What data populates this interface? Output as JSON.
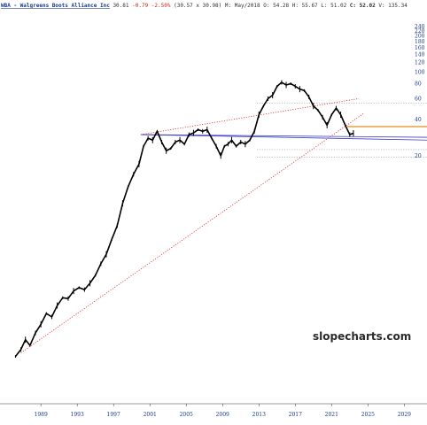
{
  "header": {
    "ticker": "WBA",
    "name": " - Walgreens Boots Alliance Inc",
    "last": " 30.81",
    "change": " -0.79 -2.50%",
    "range": " (30.57 x 30.98)",
    "period": " M: May/2018",
    "open": " O: 54.28",
    "high": " H: 55.67",
    "low": " L: 51.02",
    "close_label": " C: ",
    "close_value": "52.02",
    "volume": " V: 135.34"
  },
  "watermark": "slopecharts.com",
  "colors": {
    "price": "#000000",
    "trend_red": "#e03030",
    "trend_blue": "#3b3bc8",
    "support_orange": "#e8a040",
    "dotted_gray": "#9a9a9a",
    "axis_text": "#1a3a8c",
    "ticker_text": "#1a3a8c",
    "change_text": "#cc2222"
  },
  "chart_data": {
    "type": "line",
    "title": "WBA - Walgreens Boots Alliance Inc",
    "y_scale": "log",
    "y_ticks": [
      20,
      40,
      60,
      80,
      100,
      120,
      140,
      160,
      180,
      200,
      220,
      240
    ],
    "x_ticks": [
      "1989",
      "1993",
      "1997",
      "2001",
      "2005",
      "2009",
      "2013",
      "2017",
      "2021",
      "2025",
      "2029"
    ],
    "xlim": [
      1984.5,
      2031.5
    ],
    "ylim": [
      0.28,
      270
    ],
    "series": [
      {
        "x": [
          1986.2,
          1986.8,
          1987.3,
          1987.8,
          1988.4,
          1989.0,
          1989.6,
          1990.2,
          1990.8,
          1991.4,
          1992.0,
          1992.6,
          1993.2,
          1993.8,
          1994.4,
          1995.0,
          1995.6,
          1996.2,
          1996.8,
          1997.4,
          1998.0,
          1998.6,
          1999.2,
          1999.8,
          2000.3,
          2000.8,
          2001.3,
          2001.8,
          2002.3,
          2002.8,
          2003.3,
          2003.8,
          2004.3,
          2004.8,
          2005.3,
          2005.8,
          2006.3,
          2006.8,
          2007.3,
          2007.8,
          2008.3,
          2008.8,
          2009.2,
          2009.6,
          2010.0,
          2010.5,
          2011.0,
          2011.5,
          2012.0,
          2012.5,
          2013.0,
          2013.5,
          2014.0,
          2014.5,
          2015.0,
          2015.5,
          2016.0,
          2016.5,
          2017.0,
          2017.5,
          2018.0,
          2018.5,
          2019.0,
          2019.5,
          2020.0,
          2020.5,
          2021.0,
          2021.5,
          2022.0,
          2022.5,
          2023.0,
          2023.4
        ],
        "y": [
          0.42,
          0.48,
          0.58,
          0.52,
          0.66,
          0.78,
          0.96,
          0.9,
          1.12,
          1.3,
          1.28,
          1.48,
          1.58,
          1.52,
          1.72,
          2.0,
          2.5,
          3.0,
          4.0,
          5.2,
          8.0,
          11.0,
          14.0,
          17.0,
          24.0,
          28.0,
          27.0,
          32.0,
          26.0,
          22.0,
          23.0,
          26.0,
          27.0,
          25.0,
          30.0,
          31.0,
          33.0,
          32.0,
          33.0,
          28.0,
          24.0,
          20.0,
          24.0,
          25.0,
          27.0,
          24.0,
          26.0,
          25.0,
          27.0,
          32.0,
          44.0,
          52.0,
          60.0,
          64.0,
          76.0,
          82.0,
          78.0,
          80.0,
          76.0,
          72.0,
          70.0,
          62.0,
          52.0,
          48.0,
          42.0,
          36.0,
          44.0,
          50.0,
          44.0,
          36.0,
          30.0,
          30.81
        ]
      }
    ]
  }
}
